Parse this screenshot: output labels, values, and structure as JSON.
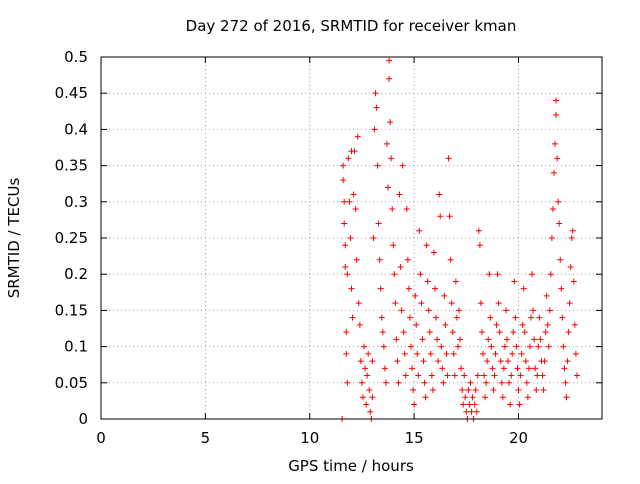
{
  "chart_data": {
    "type": "scatter",
    "title": "Day 272 of 2016, SRMTID for receiver kman",
    "xlabel": "GPS time / hours",
    "ylabel": "SRMTID / TECUs",
    "xlim": [
      0,
      24
    ],
    "ylim": [
      0,
      0.5
    ],
    "xticks": [
      0,
      5,
      10,
      15,
      20
    ],
    "xtick_labels": [
      "0",
      "5",
      "10",
      "15",
      "20"
    ],
    "yticks": [
      0,
      0.05,
      0.1,
      0.15,
      0.2,
      0.25,
      0.3,
      0.35,
      0.4,
      0.45,
      0.5
    ],
    "ytick_labels": [
      "0",
      "0.05",
      "0.1",
      "0.15",
      "0.2",
      "0.25",
      "0.3",
      "0.35",
      "0.4",
      "0.45",
      "0.5"
    ],
    "grid": true,
    "marker": "+",
    "series": [
      {
        "name": "SRMTID",
        "color": "#ff0000",
        "points": [
          [
            11.55,
            0.0
          ],
          [
            11.6,
            0.35
          ],
          [
            11.6,
            0.33
          ],
          [
            11.65,
            0.3
          ],
          [
            11.65,
            0.27
          ],
          [
            11.7,
            0.24
          ],
          [
            11.7,
            0.21
          ],
          [
            11.75,
            0.12
          ],
          [
            11.75,
            0.09
          ],
          [
            11.8,
            0.05
          ],
          [
            11.8,
            0.2
          ],
          [
            11.85,
            0.36
          ],
          [
            11.9,
            0.3
          ],
          [
            11.95,
            0.25
          ],
          [
            12.0,
            0.37
          ],
          [
            12.0,
            0.18
          ],
          [
            12.05,
            0.14
          ],
          [
            12.1,
            0.31
          ],
          [
            12.15,
            0.37
          ],
          [
            12.2,
            0.29
          ],
          [
            12.25,
            0.22
          ],
          [
            12.3,
            0.39
          ],
          [
            12.35,
            0.16
          ],
          [
            12.4,
            0.13
          ],
          [
            12.45,
            0.08
          ],
          [
            12.5,
            0.05
          ],
          [
            12.55,
            0.03
          ],
          [
            12.6,
            0.1
          ],
          [
            12.65,
            0.07
          ],
          [
            12.7,
            0.02
          ],
          [
            12.75,
            0.06
          ],
          [
            12.8,
            0.09
          ],
          [
            12.85,
            0.04
          ],
          [
            12.9,
            0.01
          ],
          [
            12.95,
            0.0
          ],
          [
            13.0,
            0.08
          ],
          [
            13.0,
            0.03
          ],
          [
            13.05,
            0.25
          ],
          [
            13.1,
            0.4
          ],
          [
            13.15,
            0.45
          ],
          [
            13.2,
            0.43
          ],
          [
            13.25,
            0.35
          ],
          [
            13.3,
            0.27
          ],
          [
            13.35,
            0.22
          ],
          [
            13.4,
            0.18
          ],
          [
            13.45,
            0.14
          ],
          [
            13.5,
            0.12
          ],
          [
            13.55,
            0.1
          ],
          [
            13.6,
            0.07
          ],
          [
            13.65,
            0.05
          ],
          [
            13.7,
            0.38
          ],
          [
            13.75,
            0.32
          ],
          [
            13.8,
            0.47
          ],
          [
            13.8,
            0.495
          ],
          [
            13.85,
            0.41
          ],
          [
            13.9,
            0.36
          ],
          [
            13.95,
            0.29
          ],
          [
            14.0,
            0.24
          ],
          [
            14.05,
            0.2
          ],
          [
            14.1,
            0.16
          ],
          [
            14.15,
            0.11
          ],
          [
            14.2,
            0.08
          ],
          [
            14.25,
            0.05
          ],
          [
            14.3,
            0.31
          ],
          [
            14.35,
            0.21
          ],
          [
            14.4,
            0.15
          ],
          [
            14.45,
            0.35
          ],
          [
            14.5,
            0.12
          ],
          [
            14.55,
            0.09
          ],
          [
            14.6,
            0.06
          ],
          [
            14.65,
            0.29
          ],
          [
            14.7,
            0.22
          ],
          [
            14.75,
            0.18
          ],
          [
            14.8,
            0.14
          ],
          [
            14.85,
            0.1
          ],
          [
            14.9,
            0.07
          ],
          [
            14.95,
            0.04
          ],
          [
            15.0,
            0.02
          ],
          [
            15.05,
            0.17
          ],
          [
            15.1,
            0.13
          ],
          [
            15.15,
            0.09
          ],
          [
            15.2,
            0.06
          ],
          [
            15.25,
            0.26
          ],
          [
            15.3,
            0.2
          ],
          [
            15.35,
            0.16
          ],
          [
            15.4,
            0.11
          ],
          [
            15.45,
            0.08
          ],
          [
            15.5,
            0.05
          ],
          [
            15.55,
            0.03
          ],
          [
            15.6,
            0.24
          ],
          [
            15.65,
            0.19
          ],
          [
            15.7,
            0.15
          ],
          [
            15.75,
            0.12
          ],
          [
            15.8,
            0.09
          ],
          [
            15.85,
            0.06
          ],
          [
            15.9,
            0.04
          ],
          [
            15.95,
            0.23
          ],
          [
            16.0,
            0.18
          ],
          [
            16.05,
            0.14
          ],
          [
            16.1,
            0.11
          ],
          [
            16.15,
            0.08
          ],
          [
            16.2,
            0.31
          ],
          [
            16.25,
            0.28
          ],
          [
            16.3,
            0.1
          ],
          [
            16.35,
            0.07
          ],
          [
            16.4,
            0.05
          ],
          [
            16.45,
            0.17
          ],
          [
            16.5,
            0.13
          ],
          [
            16.55,
            0.09
          ],
          [
            16.6,
            0.06
          ],
          [
            16.65,
            0.36
          ],
          [
            16.7,
            0.28
          ],
          [
            16.75,
            0.22
          ],
          [
            16.8,
            0.16
          ],
          [
            16.85,
            0.12
          ],
          [
            16.9,
            0.09
          ],
          [
            16.95,
            0.06
          ],
          [
            17.0,
            0.19
          ],
          [
            17.05,
            0.14
          ],
          [
            17.1,
            0.1
          ],
          [
            17.15,
            0.15
          ],
          [
            17.2,
            0.11
          ],
          [
            17.25,
            0.07
          ],
          [
            17.3,
            0.04
          ],
          [
            17.35,
            0.02
          ],
          [
            17.4,
            0.06
          ],
          [
            17.45,
            0.03
          ],
          [
            17.5,
            0.01
          ],
          [
            17.55,
            0.0
          ],
          [
            17.6,
            0.04
          ],
          [
            17.65,
            0.02
          ],
          [
            17.7,
            0.05
          ],
          [
            17.75,
            0.01
          ],
          [
            17.8,
            0.03
          ],
          [
            17.85,
            0.0
          ],
          [
            17.9,
            0.02
          ],
          [
            17.95,
            0.04
          ],
          [
            18.0,
            0.01
          ],
          [
            18.05,
            0.06
          ],
          [
            18.1,
            0.26
          ],
          [
            18.15,
            0.24
          ],
          [
            18.2,
            0.16
          ],
          [
            18.25,
            0.12
          ],
          [
            18.3,
            0.09
          ],
          [
            18.35,
            0.06
          ],
          [
            18.4,
            0.03
          ],
          [
            18.45,
            0.05
          ],
          [
            18.5,
            0.08
          ],
          [
            18.55,
            0.11
          ],
          [
            18.6,
            0.2
          ],
          [
            18.65,
            0.14
          ],
          [
            18.7,
            0.1
          ],
          [
            18.75,
            0.07
          ],
          [
            18.8,
            0.04
          ],
          [
            18.85,
            0.06
          ],
          [
            18.9,
            0.09
          ],
          [
            18.95,
            0.13
          ],
          [
            19.0,
            0.2
          ],
          [
            19.05,
            0.16
          ],
          [
            19.1,
            0.12
          ],
          [
            19.15,
            0.08
          ],
          [
            19.2,
            0.05
          ],
          [
            19.25,
            0.03
          ],
          [
            19.3,
            0.07
          ],
          [
            19.35,
            0.1
          ],
          [
            19.4,
            0.15
          ],
          [
            19.45,
            0.11
          ],
          [
            19.5,
            0.08
          ],
          [
            19.55,
            0.05
          ],
          [
            19.6,
            0.02
          ],
          [
            19.65,
            0.06
          ],
          [
            19.7,
            0.09
          ],
          [
            19.75,
            0.12
          ],
          [
            19.8,
            0.19
          ],
          [
            19.85,
            0.14
          ],
          [
            19.9,
            0.1
          ],
          [
            19.95,
            0.07
          ],
          [
            20.0,
            0.04
          ],
          [
            20.05,
            0.02
          ],
          [
            20.1,
            0.06
          ],
          [
            20.15,
            0.09
          ],
          [
            20.2,
            0.13
          ],
          [
            20.25,
            0.18
          ],
          [
            20.3,
            0.12
          ],
          [
            20.35,
            0.08
          ],
          [
            20.4,
            0.05
          ],
          [
            20.45,
            0.03
          ],
          [
            20.5,
            0.07
          ],
          [
            20.55,
            0.1
          ],
          [
            20.6,
            0.14
          ],
          [
            20.65,
            0.2
          ],
          [
            20.7,
            0.15
          ],
          [
            20.75,
            0.11
          ],
          [
            20.8,
            0.07
          ],
          [
            20.85,
            0.04
          ],
          [
            20.9,
            0.06
          ],
          [
            20.95,
            0.1
          ],
          [
            21.0,
            0.14
          ],
          [
            21.05,
            0.11
          ],
          [
            21.1,
            0.08
          ],
          [
            21.15,
            0.06
          ],
          [
            21.2,
            0.04
          ],
          [
            21.25,
            0.08
          ],
          [
            21.3,
            0.12
          ],
          [
            21.35,
            0.17
          ],
          [
            21.4,
            0.13
          ],
          [
            21.45,
            0.1
          ],
          [
            21.5,
            0.15
          ],
          [
            21.55,
            0.2
          ],
          [
            21.6,
            0.25
          ],
          [
            21.65,
            0.29
          ],
          [
            21.7,
            0.34
          ],
          [
            21.75,
            0.38
          ],
          [
            21.8,
            0.42
          ],
          [
            21.8,
            0.44
          ],
          [
            21.85,
            0.36
          ],
          [
            21.9,
            0.3
          ],
          [
            21.95,
            0.27
          ],
          [
            22.0,
            0.22
          ],
          [
            22.05,
            0.18
          ],
          [
            22.1,
            0.14
          ],
          [
            22.15,
            0.1
          ],
          [
            22.2,
            0.07
          ],
          [
            22.25,
            0.05
          ],
          [
            22.3,
            0.03
          ],
          [
            22.35,
            0.08
          ],
          [
            22.4,
            0.12
          ],
          [
            22.45,
            0.16
          ],
          [
            22.5,
            0.21
          ],
          [
            22.55,
            0.25
          ],
          [
            22.6,
            0.26
          ],
          [
            22.65,
            0.19
          ],
          [
            22.7,
            0.13
          ],
          [
            22.75,
            0.09
          ],
          [
            22.8,
            0.06
          ]
        ]
      }
    ]
  }
}
